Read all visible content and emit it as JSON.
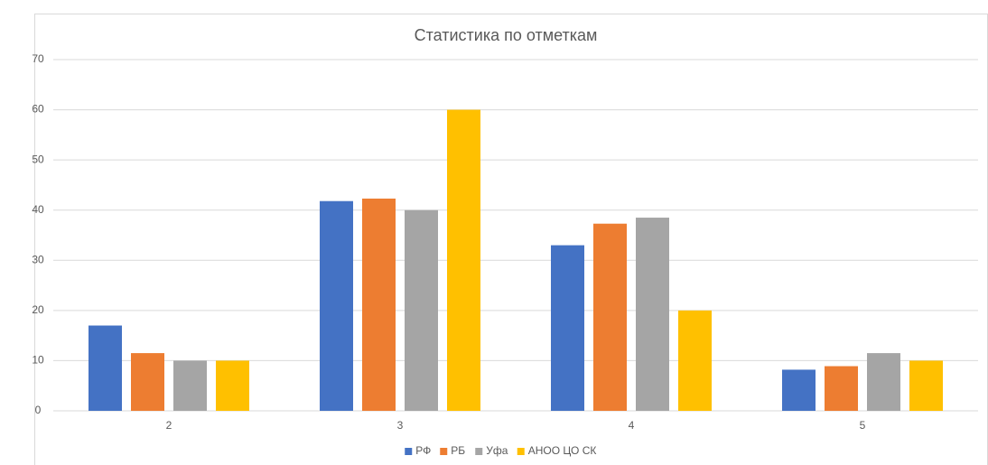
{
  "chart_data": {
    "type": "bar",
    "title": "Статистика по отметкам",
    "categories": [
      "2",
      "3",
      "4",
      "5"
    ],
    "series": [
      {
        "name": "РФ",
        "color": "#4472c4",
        "values": [
          17,
          41.8,
          33,
          8.2
        ]
      },
      {
        "name": "РБ",
        "color": "#ed7d31",
        "values": [
          11.5,
          42.3,
          37.3,
          8.9
        ]
      },
      {
        "name": "Уфа",
        "color": "#a5a5a5",
        "values": [
          10,
          40,
          38.5,
          11.5
        ]
      },
      {
        "name": "АНОО ЦО СК",
        "color": "#ffc000",
        "values": [
          10,
          60,
          20,
          10
        ]
      }
    ],
    "ylim": [
      0,
      70
    ],
    "yticks": [
      0,
      10,
      20,
      30,
      40,
      50,
      60,
      70
    ],
    "grid": true,
    "legend": "bottom"
  }
}
